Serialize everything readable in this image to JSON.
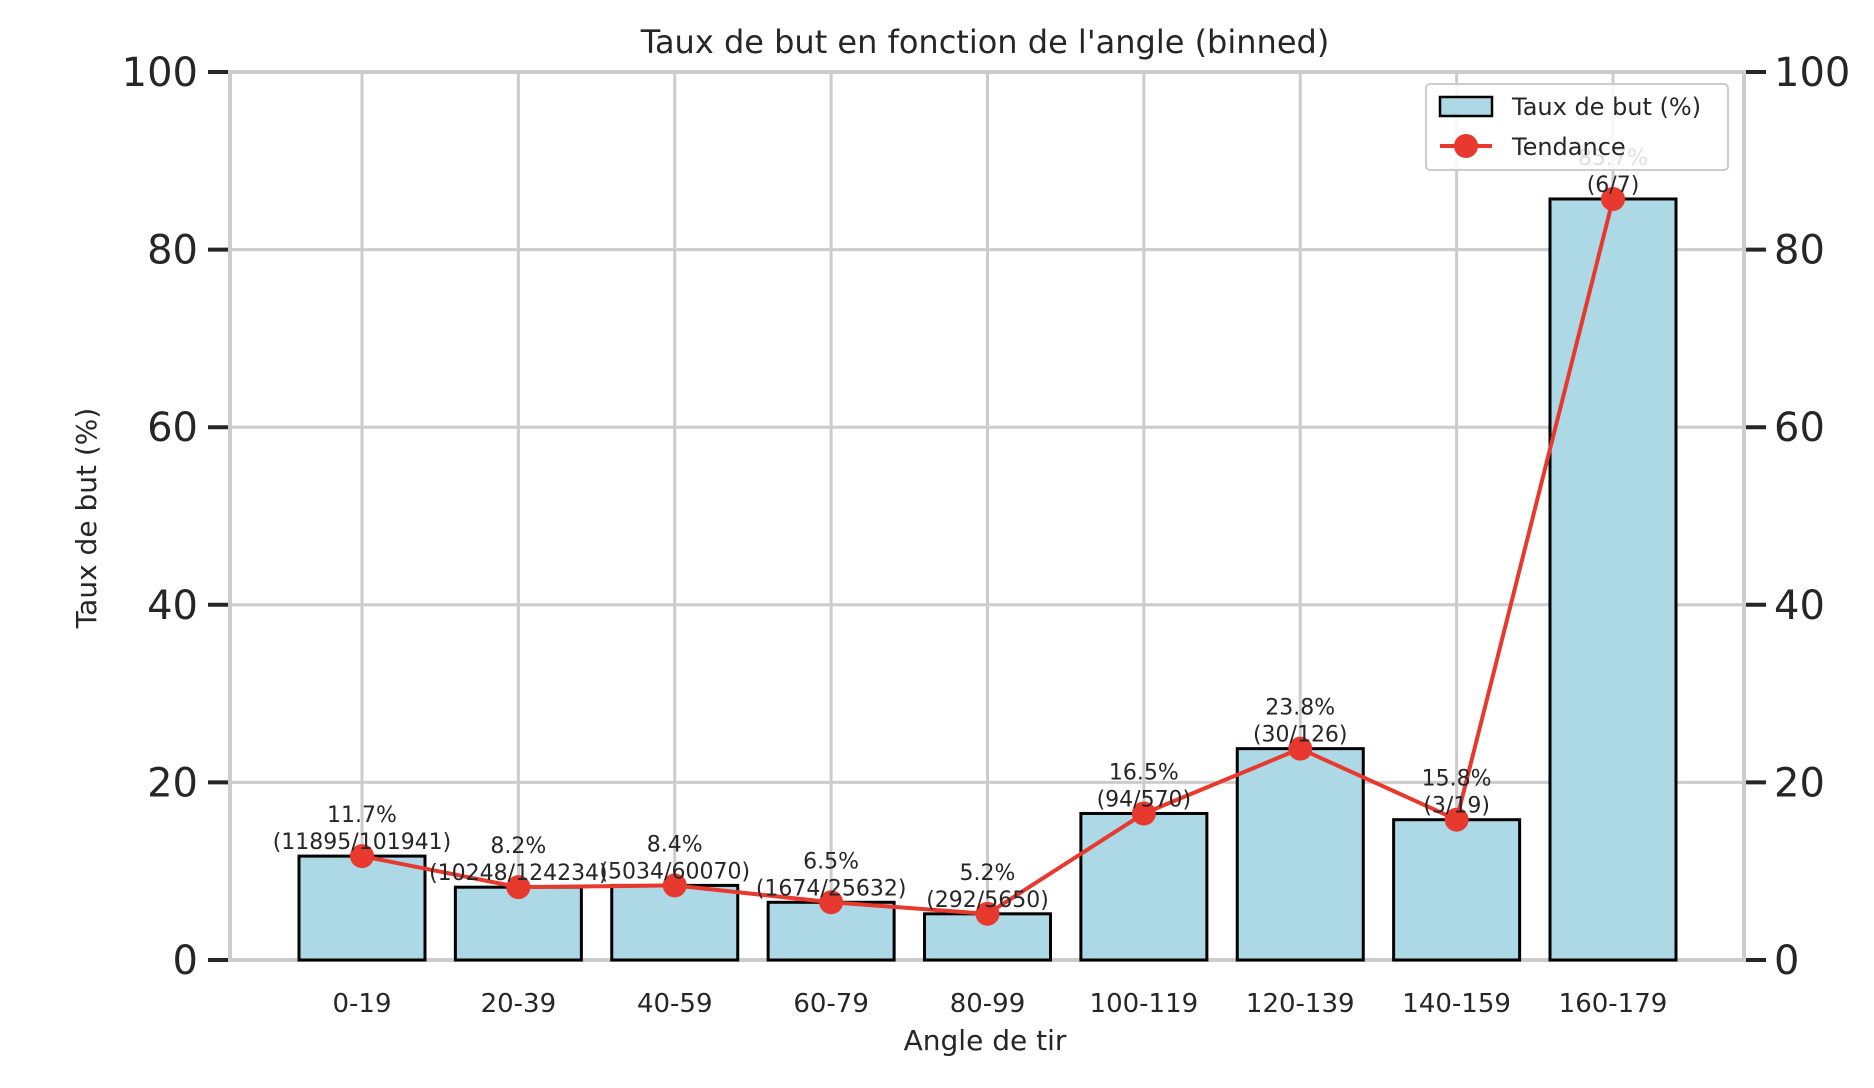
{
  "chart_data": {
    "type": "bar",
    "title": "Taux de but en fonction de l'angle (binned)",
    "xlabel": "Angle de tir",
    "ylabel": "Taux de but (%)",
    "ylim": [
      0,
      100
    ],
    "yticks": [
      0,
      20,
      40,
      60,
      80,
      100
    ],
    "grid": true,
    "legend_position": "top-right",
    "categories": [
      "0-19",
      "20-39",
      "40-59",
      "60-79",
      "80-99",
      "100-119",
      "120-139",
      "140-159",
      "160-179"
    ],
    "series": [
      {
        "name": "Taux de but (%)",
        "kind": "bar",
        "color": "#add8e6",
        "edgecolor": "#000000",
        "values": [
          11.7,
          8.2,
          8.4,
          6.5,
          5.2,
          16.5,
          23.8,
          15.8,
          85.7
        ]
      },
      {
        "name": "Tendance",
        "kind": "line",
        "color": "#e8392e",
        "values": [
          11.7,
          8.2,
          8.4,
          6.5,
          5.2,
          16.5,
          23.8,
          15.8,
          85.7
        ]
      }
    ],
    "data_labels": [
      [
        "11.7%",
        "(11895/101941)"
      ],
      [
        "8.2%",
        "(10248/124234)"
      ],
      [
        "8.4%",
        "(5034/60070)"
      ],
      [
        "6.5%",
        "(1674/25632)"
      ],
      [
        "5.2%",
        "(292/5650)"
      ],
      [
        "16.5%",
        "(94/570)"
      ],
      [
        "23.8%",
        "(30/126)"
      ],
      [
        "15.8%",
        "(3/19)"
      ],
      [
        "85.7%",
        "(6/7)"
      ]
    ]
  }
}
